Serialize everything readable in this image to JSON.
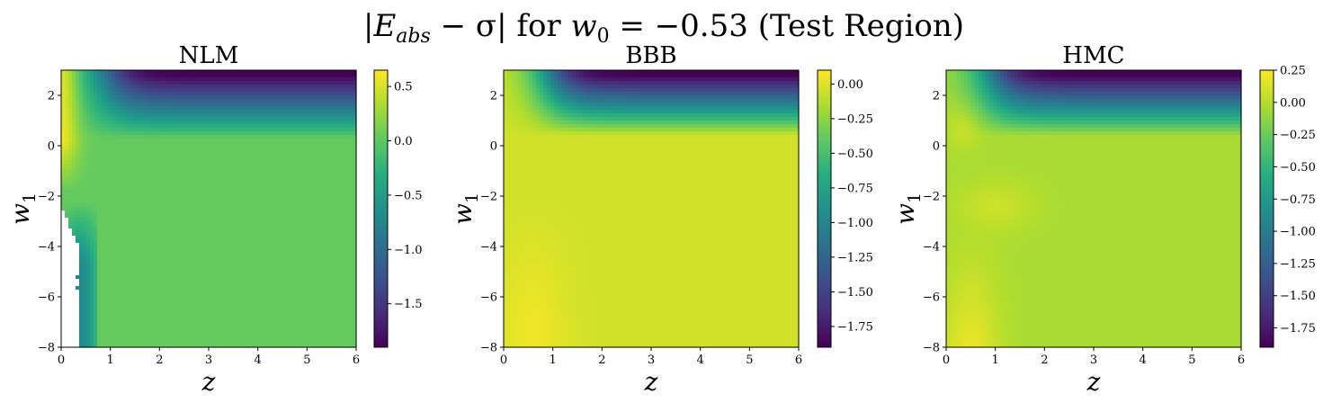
{
  "figure": {
    "title": "|E_abs − σ| for w_0 = −0.53 (Test Region)",
    "title_parts": {
      "bar_left": "|",
      "E": "E",
      "E_sub": "abs",
      "minus_sigma": " − σ",
      "bar_right": "|",
      "for": " for ",
      "w": "w",
      "w_sub": "0",
      "eq": " = −0.53 ",
      "region": "(Test Region)"
    }
  },
  "chart_data": [
    {
      "type": "heatmap",
      "title": "NLM",
      "xlabel": "z",
      "ylabel": "w",
      "ylabel_sub": "1",
      "xlim": [
        0,
        6
      ],
      "ylim": [
        -8,
        3
      ],
      "xticks": [
        0,
        1,
        2,
        3,
        4,
        5,
        6
      ],
      "yticks": [
        2,
        0,
        -2,
        -4,
        -6,
        -8
      ],
      "colormap": "viridis",
      "colorbar_range": [
        -1.9,
        0.65
      ],
      "colorbar_ticks": [
        0.5,
        0.0,
        -0.5,
        -1.0,
        -1.5
      ],
      "colorbar_tick_labels": [
        "0.5",
        "0.0",
        "−0.5",
        "−1.0",
        "−1.5"
      ],
      "approx_values": {
        "background": 0.04,
        "top_right_min": -1.9,
        "top_left_max": 0.62,
        "blank_region_note": "white (NaN) near z≈0–0.4, w1≈−2.5 to −8"
      }
    },
    {
      "type": "heatmap",
      "title": "BBB",
      "xlabel": "z",
      "ylabel": "w",
      "ylabel_sub": "1",
      "xlim": [
        0,
        6
      ],
      "ylim": [
        -8,
        3
      ],
      "xticks": [
        0,
        1,
        2,
        3,
        4,
        5,
        6
      ],
      "yticks": [
        2,
        0,
        -2,
        -4,
        -6,
        -8
      ],
      "colormap": "viridis",
      "colorbar_range": [
        -1.9,
        0.1
      ],
      "colorbar_ticks": [
        0.0,
        -0.25,
        -0.5,
        -0.75,
        -1.0,
        -1.25,
        -1.5,
        -1.75
      ],
      "colorbar_tick_labels": [
        "0.00",
        "−0.25",
        "−0.50",
        "−0.75",
        "−1.00",
        "−1.25",
        "−1.50",
        "−1.75"
      ],
      "approx_values": {
        "background": -0.03,
        "top_right_min": -1.9,
        "bottom_left_max": 0.08
      }
    },
    {
      "type": "heatmap",
      "title": "HMC",
      "xlabel": "z",
      "ylabel": "w",
      "ylabel_sub": "1",
      "xlim": [
        0,
        6
      ],
      "ylim": [
        -8,
        3
      ],
      "xticks": [
        0,
        1,
        2,
        3,
        4,
        5,
        6
      ],
      "yticks": [
        2,
        0,
        -2,
        -4,
        -6,
        -8
      ],
      "colormap": "viridis",
      "colorbar_range": [
        -1.9,
        0.25
      ],
      "colorbar_ticks": [
        0.25,
        0.0,
        -0.25,
        -0.5,
        -0.75,
        -1.0,
        -1.25,
        -1.5,
        -1.75
      ],
      "colorbar_tick_labels": [
        "0.25",
        "0.00",
        "−0.25",
        "−0.50",
        "−0.75",
        "−1.00",
        "−1.25",
        "−1.50",
        "−1.75"
      ],
      "approx_values": {
        "background": -0.02,
        "top_right_min": -1.9,
        "bottom_left_max": 0.22
      }
    }
  ]
}
